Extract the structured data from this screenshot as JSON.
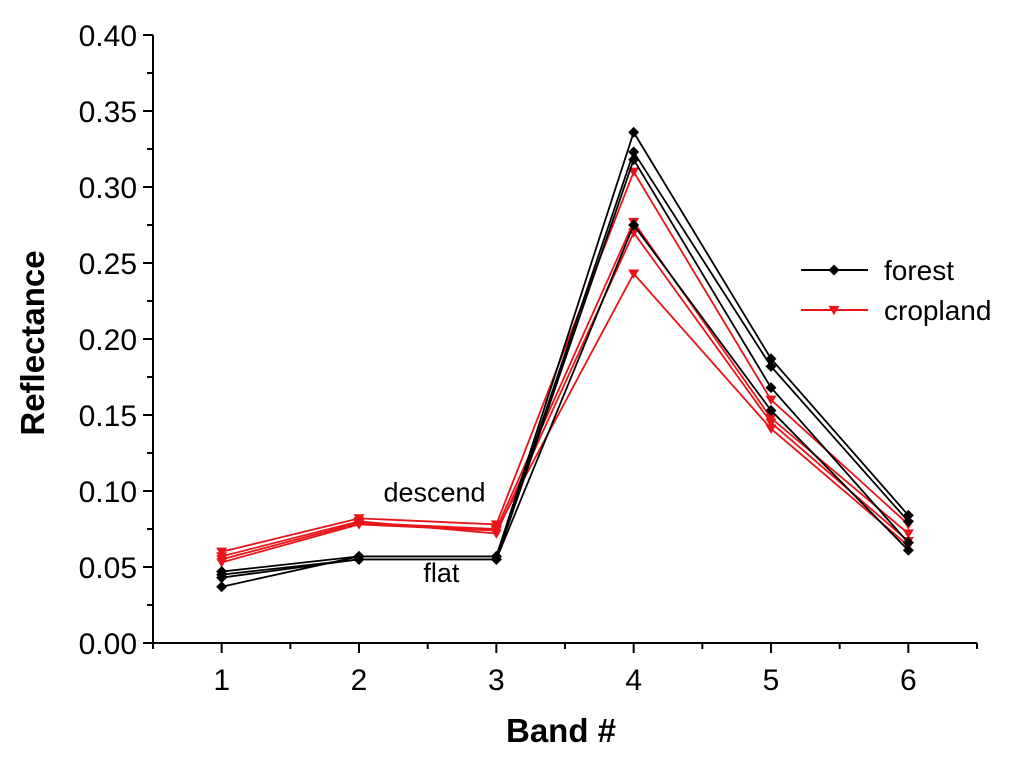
{
  "chart_data": {
    "type": "line",
    "title": "",
    "xlabel": "Band #",
    "ylabel": "Reflectance",
    "xlim": [
      0.5,
      6.5
    ],
    "ylim": [
      0.0,
      0.4
    ],
    "x": [
      1,
      2,
      3,
      4,
      5,
      6
    ],
    "x_ticks": [
      "1",
      "2",
      "3",
      "4",
      "5",
      "6"
    ],
    "y_ticks": [
      "0.00",
      "0.05",
      "0.10",
      "0.15",
      "0.20",
      "0.25",
      "0.30",
      "0.35",
      "0.40"
    ],
    "y_tick_values": [
      0.0,
      0.05,
      0.1,
      0.15,
      0.2,
      0.25,
      0.3,
      0.35,
      0.4
    ],
    "grid": false,
    "legend": [
      {
        "name": "forest",
        "color": "#000000",
        "marker": "diamond"
      },
      {
        "name": "cropland",
        "color": "#e8141a",
        "marker": "triangle-down"
      }
    ],
    "legend_position": "right",
    "annotations": [
      {
        "text": "descend",
        "x": 2.55,
        "y": 0.093
      },
      {
        "text": "flat",
        "x": 2.6,
        "y": 0.04
      }
    ],
    "series": [
      {
        "name": "forest",
        "class": "forest",
        "values": [
          0.037,
          0.057,
          0.057,
          0.336,
          0.187,
          0.084
        ]
      },
      {
        "name": "forest",
        "class": "forest",
        "values": [
          0.047,
          0.057,
          0.057,
          0.323,
          0.182,
          0.08
        ]
      },
      {
        "name": "forest",
        "class": "forest",
        "values": [
          0.043,
          0.055,
          0.055,
          0.318,
          0.168,
          0.066
        ]
      },
      {
        "name": "forest",
        "class": "forest",
        "values": [
          0.045,
          0.055,
          0.055,
          0.275,
          0.153,
          0.061
        ]
      },
      {
        "name": "cropland",
        "class": "cropland",
        "values": [
          0.06,
          0.082,
          0.078,
          0.31,
          0.16,
          0.078
        ]
      },
      {
        "name": "cropland",
        "class": "cropland",
        "values": [
          0.055,
          0.079,
          0.075,
          0.277,
          0.148,
          0.072
        ]
      },
      {
        "name": "cropland",
        "class": "cropland",
        "values": [
          0.057,
          0.08,
          0.072,
          0.27,
          0.145,
          0.067
        ]
      },
      {
        "name": "cropland",
        "class": "cropland",
        "values": [
          0.053,
          0.078,
          0.074,
          0.243,
          0.141,
          0.064
        ]
      }
    ]
  }
}
